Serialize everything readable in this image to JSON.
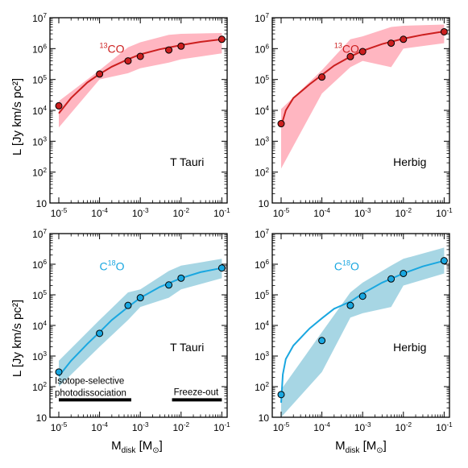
{
  "figure": {
    "ylabel": "L [Jy km/s pc²]",
    "xlabel": "M",
    "xlabel_sub": "disk",
    "xlabel_unit_open": " [M",
    "xlabel_unit_sun": "⊙",
    "xlabel_unit_close": "]"
  },
  "chart_data": [
    {
      "type": "line",
      "panel": "top-left",
      "label": "T Tauri",
      "molecule_super": "13",
      "molecule": "CO",
      "color": "#cc1f1f",
      "band_color": "#ffb6c1",
      "xscale": "log",
      "yscale": "log",
      "xlim": [
        5e-06,
        0.2
      ],
      "ylim": [
        10,
        10000000.0
      ],
      "x_ticks": [
        "10-5",
        "10-4",
        "10-3",
        "10-2",
        "10-1"
      ],
      "y_ticks": [
        "10",
        "102",
        "103",
        "104",
        "105",
        "106",
        "107"
      ],
      "points": [
        [
          1e-05,
          14000
        ],
        [
          0.0001,
          150000
        ],
        [
          0.0005,
          400000
        ],
        [
          0.001,
          560000
        ],
        [
          0.005,
          900000
        ],
        [
          0.01,
          1200000
        ],
        [
          0.1,
          2000000
        ]
      ],
      "curve": [
        [
          1e-05,
          8000
        ],
        [
          2e-05,
          25000
        ],
        [
          5e-05,
          80000
        ],
        [
          0.0001,
          150000
        ],
        [
          0.0002,
          260000
        ],
        [
          0.0005,
          450000
        ],
        [
          0.001,
          650000
        ],
        [
          0.003,
          950000
        ],
        [
          0.01,
          1300000
        ],
        [
          0.03,
          1650000
        ],
        [
          0.1,
          2000000
        ]
      ],
      "band_upper": [
        [
          1e-05,
          20000
        ],
        [
          0.0001,
          200000
        ],
        [
          0.0005,
          1100000
        ],
        [
          0.001,
          1600000
        ],
        [
          0.005,
          2800000
        ],
        [
          0.01,
          3000000
        ],
        [
          0.1,
          3200000
        ]
      ],
      "band_lower": [
        [
          1e-05,
          2800
        ],
        [
          0.0001,
          100000
        ],
        [
          0.0005,
          160000
        ],
        [
          0.001,
          230000
        ],
        [
          0.005,
          350000
        ],
        [
          0.01,
          450000
        ],
        [
          0.1,
          700000
        ]
      ]
    },
    {
      "type": "line",
      "panel": "top-right",
      "label": "Herbig",
      "molecule_super": "13",
      "molecule": "CO",
      "color": "#cc1f1f",
      "band_color": "#ffb6c1",
      "xscale": "log",
      "yscale": "log",
      "xlim": [
        5e-06,
        0.2
      ],
      "ylim": [
        10,
        10000000.0
      ],
      "x_ticks": [
        "10-5",
        "10-4",
        "10-3",
        "10-2",
        "10-1"
      ],
      "y_ticks": [
        "10",
        "102",
        "103",
        "104",
        "105",
        "106",
        "107"
      ],
      "points": [
        [
          1e-05,
          3700
        ],
        [
          0.0001,
          120000
        ],
        [
          0.0005,
          550000
        ],
        [
          0.001,
          800000
        ],
        [
          0.005,
          1500000
        ],
        [
          0.01,
          2000000
        ],
        [
          0.1,
          3500000
        ]
      ],
      "curve": [
        [
          1e-05,
          3000
        ],
        [
          1.3e-05,
          10000
        ],
        [
          2e-05,
          25000
        ],
        [
          5e-05,
          70000
        ],
        [
          0.0001,
          140000
        ],
        [
          0.0002,
          280000
        ],
        [
          0.0005,
          550000
        ],
        [
          0.001,
          850000
        ],
        [
          0.003,
          1400000
        ],
        [
          0.01,
          2100000
        ],
        [
          0.03,
          2800000
        ],
        [
          0.1,
          3600000
        ]
      ],
      "band_upper": [
        [
          1e-05,
          11000
        ],
        [
          0.0001,
          200000
        ],
        [
          0.0005,
          2000000
        ],
        [
          0.001,
          2500000
        ],
        [
          0.005,
          5000000
        ],
        [
          0.01,
          5500000
        ],
        [
          0.1,
          6000000
        ]
      ],
      "band_lower": [
        [
          1e-05,
          130
        ],
        [
          0.0001,
          35000
        ],
        [
          0.0005,
          250000
        ],
        [
          0.001,
          400000
        ],
        [
          0.005,
          250000
        ],
        [
          0.01,
          1000000
        ],
        [
          0.1,
          1500000
        ]
      ]
    },
    {
      "type": "line",
      "panel": "bottom-left",
      "label": "T Tauri",
      "molecule_pre": "C",
      "molecule_super": "18",
      "molecule": "O",
      "color": "#1aa7e0",
      "band_color": "#a7d6e4",
      "xscale": "log",
      "yscale": "log",
      "xlim": [
        5e-06,
        0.2
      ],
      "ylim": [
        10,
        10000000.0
      ],
      "x_ticks": [
        "10-5",
        "10-4",
        "10-3",
        "10-2",
        "10-1"
      ],
      "y_ticks": [
        "10",
        "102",
        "103",
        "104",
        "105",
        "106",
        "107"
      ],
      "points": [
        [
          1e-05,
          300
        ],
        [
          0.0001,
          5500
        ],
        [
          0.0005,
          45000
        ],
        [
          0.001,
          80000
        ],
        [
          0.005,
          210000
        ],
        [
          0.01,
          350000
        ],
        [
          0.1,
          750000
        ]
      ],
      "curve": [
        [
          1e-05,
          220
        ],
        [
          2e-05,
          700
        ],
        [
          5e-05,
          2500
        ],
        [
          0.0001,
          6000
        ],
        [
          0.0002,
          15000
        ],
        [
          0.0005,
          40000
        ],
        [
          0.001,
          80000
        ],
        [
          0.003,
          180000
        ],
        [
          0.01,
          350000
        ],
        [
          0.03,
          550000
        ],
        [
          0.1,
          750000
        ]
      ],
      "band_upper": [
        [
          1e-05,
          700
        ],
        [
          0.0001,
          15000
        ],
        [
          0.0005,
          120000
        ],
        [
          0.001,
          150000
        ],
        [
          0.005,
          600000
        ],
        [
          0.01,
          900000
        ],
        [
          0.1,
          1500000
        ]
      ],
      "band_lower": [
        [
          1e-05,
          100
        ],
        [
          0.0001,
          2000
        ],
        [
          0.0005,
          15000
        ],
        [
          0.001,
          40000
        ],
        [
          0.005,
          80000
        ],
        [
          0.01,
          150000
        ],
        [
          0.1,
          350000
        ]
      ],
      "annotations": {
        "left_bar_line1": "Isotope-selective",
        "left_bar_line2": "photodissociation",
        "right_bar": "Freeze-out",
        "left_bar_range": [
          1e-05,
          0.0006
        ],
        "right_bar_range": [
          0.006,
          0.1
        ]
      }
    },
    {
      "type": "line",
      "panel": "bottom-right",
      "label": "Herbig",
      "molecule_pre": "C",
      "molecule_super": "18",
      "molecule": "O",
      "color": "#1aa7e0",
      "band_color": "#a7d6e4",
      "xscale": "log",
      "yscale": "log",
      "xlim": [
        5e-06,
        0.2
      ],
      "ylim": [
        10,
        10000000.0
      ],
      "x_ticks": [
        "10-5",
        "10-4",
        "10-3",
        "10-2",
        "10-1"
      ],
      "y_ticks": [
        "10",
        "102",
        "103",
        "104",
        "105",
        "106",
        "107"
      ],
      "points": [
        [
          1e-05,
          55
        ],
        [
          0.0001,
          3200
        ],
        [
          0.0005,
          45000
        ],
        [
          0.001,
          90000
        ],
        [
          0.005,
          330000
        ],
        [
          0.01,
          500000
        ],
        [
          0.1,
          1300000
        ]
      ],
      "curve": [
        [
          1e-05,
          30
        ],
        [
          1.1e-05,
          250
        ],
        [
          1.3e-05,
          800
        ],
        [
          2e-05,
          2200
        ],
        [
          5e-05,
          8000
        ],
        [
          0.0001,
          17000
        ],
        [
          0.0002,
          35000
        ],
        [
          0.0005,
          60000
        ],
        [
          0.001,
          110000
        ],
        [
          0.003,
          250000
        ],
        [
          0.01,
          500000
        ],
        [
          0.03,
          850000
        ],
        [
          0.1,
          1300000
        ]
      ],
      "band_upper": [
        [
          1e-05,
          80
        ],
        [
          0.0001,
          6000
        ],
        [
          0.0005,
          120000
        ],
        [
          0.001,
          250000
        ],
        [
          0.005,
          900000
        ],
        [
          0.01,
          1500000
        ],
        [
          0.1,
          3500000
        ]
      ],
      "band_lower": [
        [
          1e-05,
          10
        ],
        [
          0.0001,
          300
        ],
        [
          0.0005,
          18000
        ],
        [
          0.001,
          25000
        ],
        [
          0.005,
          40000
        ],
        [
          0.01,
          200000
        ],
        [
          0.1,
          500000
        ]
      ]
    }
  ]
}
